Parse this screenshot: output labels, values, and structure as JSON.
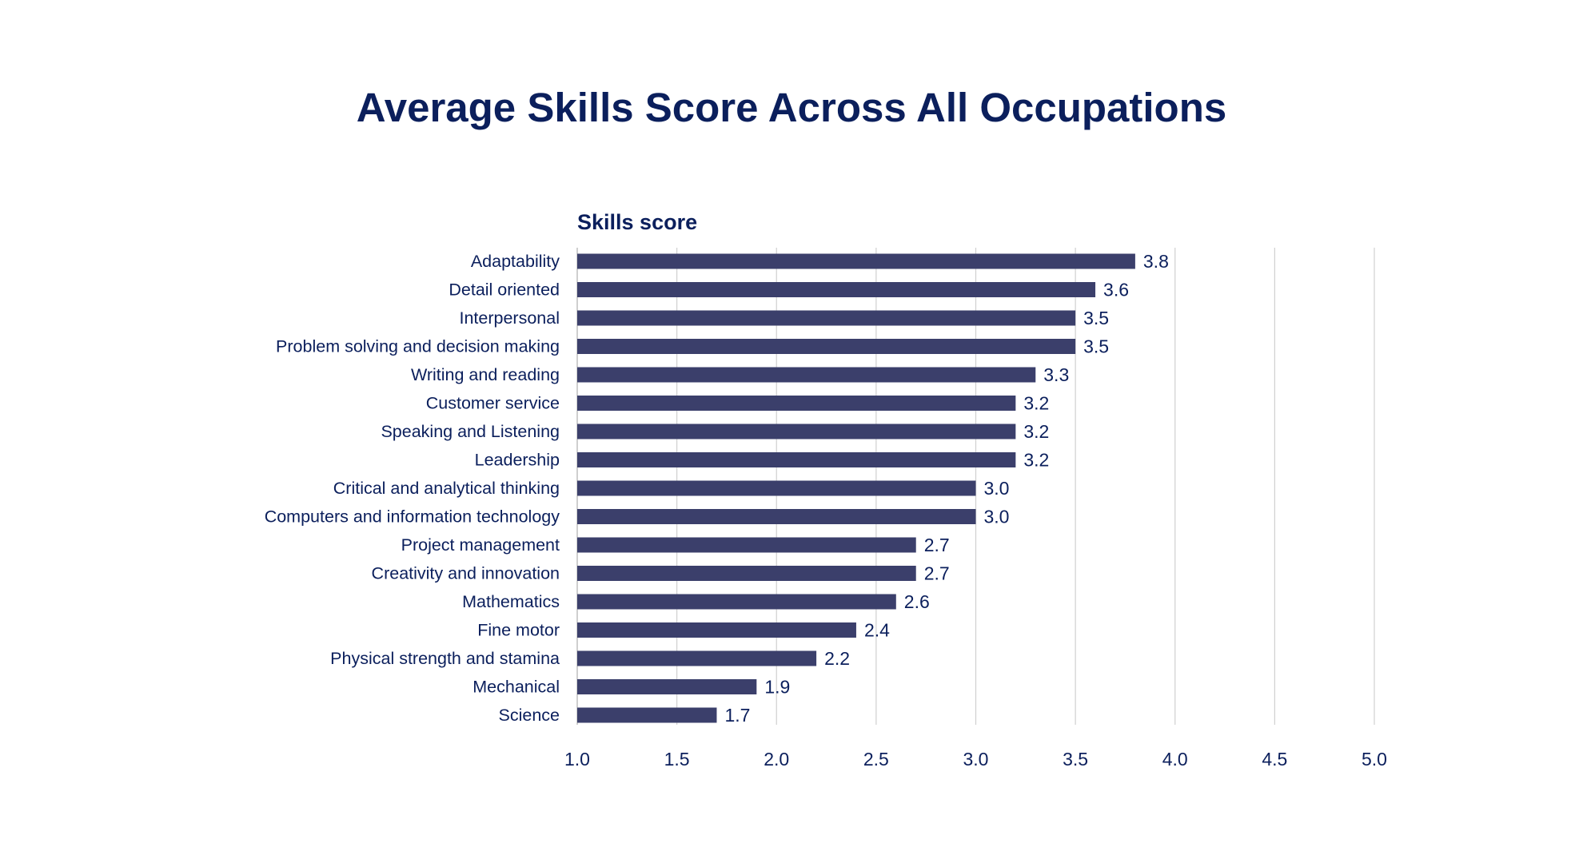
{
  "chart_data": {
    "type": "bar",
    "orientation": "horizontal",
    "title": "Average Skills Score Across All Occupations",
    "xlabel": "Skills score",
    "ylabel": "",
    "xlim": [
      1.0,
      5.0
    ],
    "ticks": [
      "1.0",
      "1.5",
      "2.0",
      "2.5",
      "3.0",
      "3.5",
      "4.0",
      "4.5",
      "5.0"
    ],
    "tick_values": [
      1.0,
      1.5,
      2.0,
      2.5,
      3.0,
      3.5,
      4.0,
      4.5,
      5.0
    ],
    "grid": true,
    "legend": "none",
    "bar_color": "#3b3f6b",
    "text_color": "#0b1f5c",
    "categories": [
      "Adaptability",
      "Detail oriented",
      "Interpersonal",
      "Problem solving and decision making",
      "Writing and reading",
      "Customer service",
      "Speaking and Listening",
      "Leadership",
      "Critical and analytical thinking",
      "Computers and information technology",
      "Project management",
      "Creativity and innovation",
      "Mathematics",
      "Fine motor",
      "Physical strength and stamina",
      "Mechanical",
      "Science"
    ],
    "values": [
      3.8,
      3.6,
      3.5,
      3.5,
      3.3,
      3.2,
      3.2,
      3.2,
      3.0,
      3.0,
      2.7,
      2.7,
      2.6,
      2.4,
      2.2,
      1.9,
      1.7
    ],
    "data_labels": [
      "3.8",
      "3.6",
      "3.5",
      "3.5",
      "3.3",
      "3.2",
      "3.2",
      "3.2",
      "3.0",
      "3.0",
      "2.7",
      "2.7",
      "2.6",
      "2.4",
      "2.2",
      "1.9",
      "1.7"
    ]
  }
}
